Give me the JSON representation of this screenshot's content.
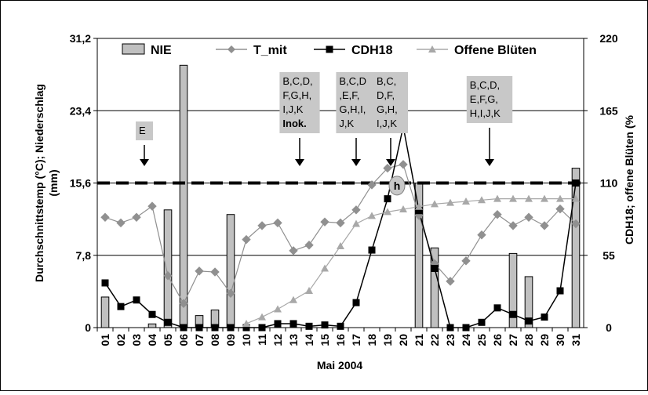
{
  "chart_data": {
    "type": "bar+line",
    "xlabel": "Mai 2004",
    "ylabel_left_lines": [
      "Durchschnittstemp (°C); Niederschlag",
      "(mm)"
    ],
    "ylabel_right": "CDH18;  offene Blüten (%",
    "categories": [
      "01",
      "02",
      "03",
      "04",
      "05",
      "06",
      "07",
      "08",
      "09",
      "10",
      "11",
      "12",
      "13",
      "14",
      "15",
      "16",
      "17",
      "18",
      "19",
      "20",
      "21",
      "22",
      "23",
      "24",
      "25",
      "26",
      "27",
      "28",
      "29",
      "30",
      "31"
    ],
    "y_left": {
      "min": 0,
      "max": 31.2,
      "ticks": [
        "0",
        "7,8",
        "15,6",
        "23,4",
        "31,2"
      ],
      "tick_values": [
        0,
        7.8,
        15.6,
        23.4,
        31.2
      ]
    },
    "y_right": {
      "min": 0,
      "max": 220,
      "ticks": [
        "0",
        "55",
        "110",
        "165",
        "220"
      ],
      "tick_values": [
        0,
        55,
        110,
        165,
        220
      ]
    },
    "threshold_left_value": 15.6,
    "series": [
      {
        "name": "NIE",
        "kind": "bar",
        "axis": "left",
        "color": "#c0c0c0",
        "values": [
          3.3,
          0,
          0,
          0.4,
          12.7,
          28.3,
          1.3,
          1.9,
          12.2,
          0,
          0,
          0,
          0,
          0,
          0,
          0,
          0,
          0,
          0,
          0,
          15.6,
          8.6,
          0,
          0,
          0,
          0,
          8.0,
          5.5,
          0,
          0,
          17.2
        ]
      },
      {
        "name": "T_mit",
        "kind": "line",
        "axis": "left",
        "color": "#909090",
        "marker": "diamond",
        "values": [
          11.9,
          11.3,
          11.9,
          13.1,
          5.6,
          2.6,
          6.1,
          6.0,
          3.7,
          9.5,
          11.0,
          11.3,
          8.3,
          8.9,
          11.4,
          11.3,
          12.7,
          15.4,
          17.2,
          17.6,
          12.1,
          6.9,
          5.0,
          7.2,
          10.0,
          12.2,
          11.0,
          11.9,
          11.0,
          12.8,
          11.2
        ]
      },
      {
        "name": "CDH18",
        "kind": "line",
        "axis": "right",
        "color": "#000000",
        "marker": "square",
        "values": [
          34,
          16,
          21,
          10,
          4,
          0,
          0,
          0,
          0,
          0,
          0,
          3,
          3,
          1,
          2,
          1,
          19,
          59,
          98,
          153,
          89,
          45,
          0,
          0,
          4,
          15,
          10,
          5,
          8,
          28,
          110
        ]
      },
      {
        "name": "Offene Blüten",
        "kind": "line",
        "axis": "right",
        "color": "#a8a8a8",
        "marker": "triangle",
        "values": [
          null,
          null,
          null,
          null,
          null,
          null,
          null,
          null,
          null,
          3,
          8,
          14,
          21,
          28,
          45,
          62,
          79,
          85,
          88,
          90,
          92,
          94,
          95,
          96,
          97,
          98,
          98,
          98,
          98,
          98,
          98
        ]
      }
    ],
    "annotations": [
      {
        "day_index": 2.5,
        "lines": [
          "E"
        ],
        "bold_last": false
      },
      {
        "day_index": 12.4,
        "lines": [
          "B,C,D,",
          "F,G,H,",
          "I,J,K",
          "Inok."
        ],
        "bold_last": true
      },
      {
        "day_index": 16.0,
        "lines": [
          "B,C,D",
          ",E,F,",
          "G,H,I,",
          "J,K"
        ],
        "bold_last": false
      },
      {
        "day_index": 18.2,
        "lines": [
          "B,C,",
          "D,F,",
          "G,H,",
          "I,J,K"
        ],
        "bold_last": false
      },
      {
        "day_index": 24.5,
        "lines": [
          "B,C,D,",
          "E,F,G,",
          "H,I,J,K"
        ],
        "bold_last": false
      }
    ],
    "h_marker": {
      "label": "h"
    }
  }
}
